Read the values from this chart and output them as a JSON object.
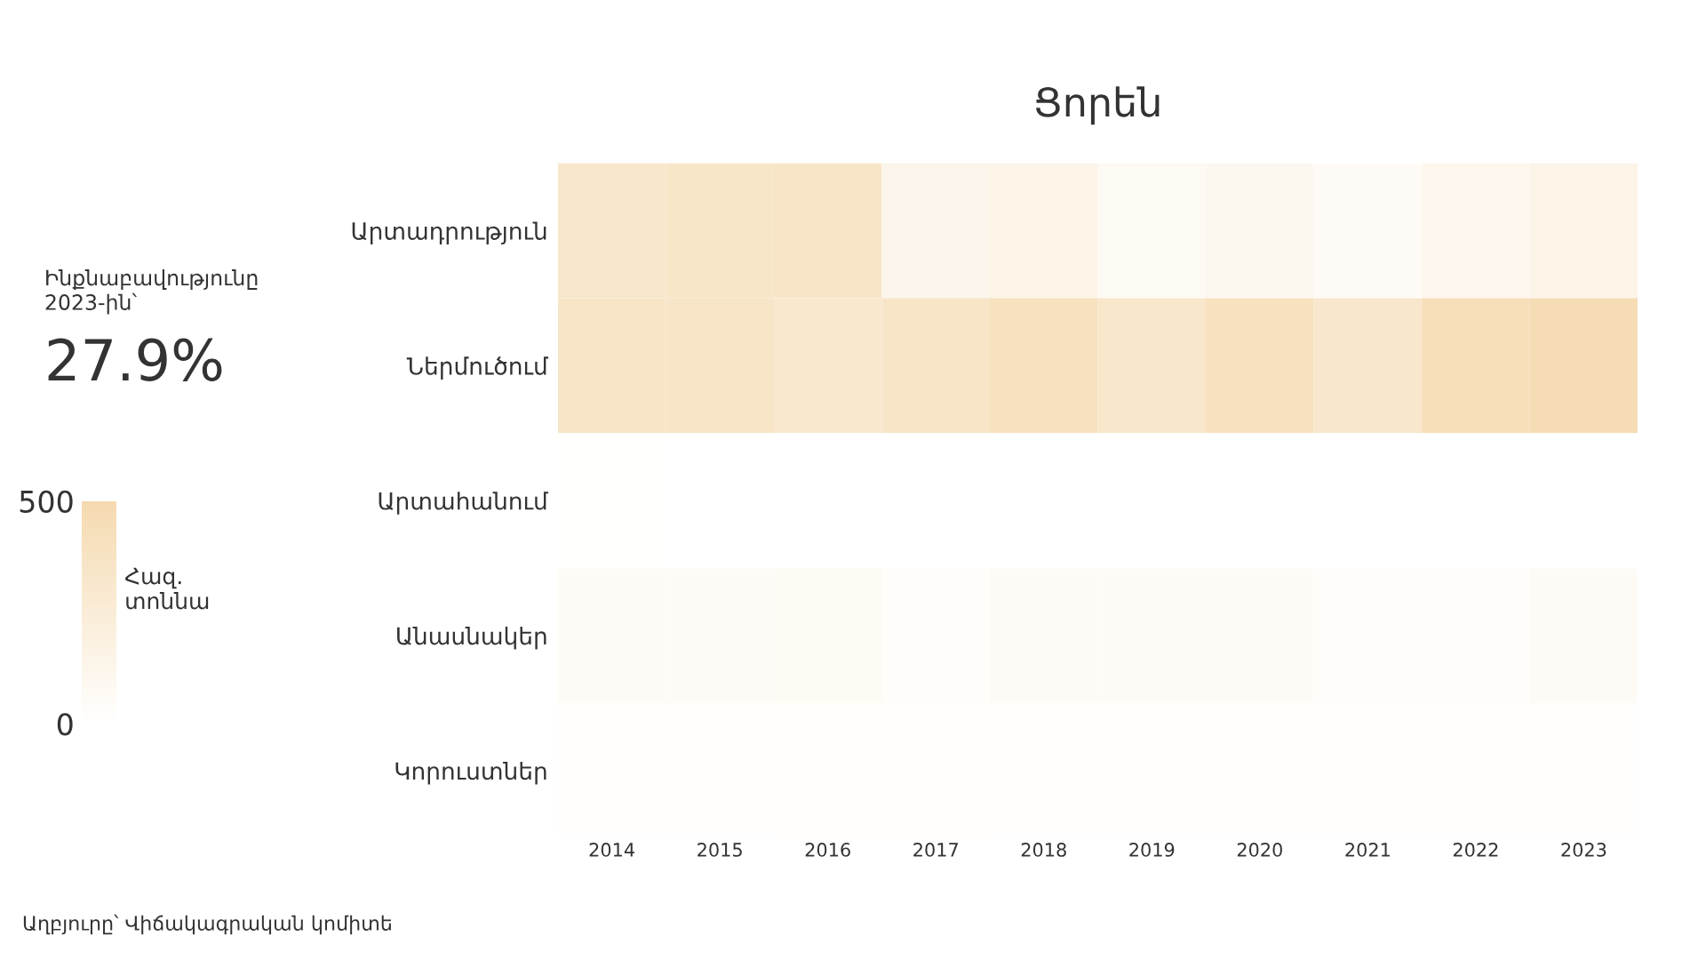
{
  "chart_data": {
    "type": "heatmap",
    "title": "Ցորեն",
    "categories": [
      "2014",
      "2015",
      "2016",
      "2017",
      "2018",
      "2019",
      "2020",
      "2021",
      "2022",
      "2023"
    ],
    "y_categories": [
      "Արտադրություն",
      "Ներմուծում",
      "Արտահանում",
      "Անասնակեր",
      "Կորուստներ"
    ],
    "cells": [
      [
        330,
        340,
        350,
        130,
        150,
        80,
        100,
        60,
        110,
        150
      ],
      [
        350,
        360,
        310,
        350,
        410,
        330,
        410,
        320,
        440,
        470
      ],
      [
        5,
        3,
        3,
        2,
        0,
        0,
        3,
        0,
        3,
        0
      ],
      [
        50,
        50,
        70,
        30,
        55,
        55,
        55,
        30,
        35,
        50
      ],
      [
        15,
        15,
        18,
        18,
        15,
        12,
        12,
        12,
        12,
        12
      ]
    ],
    "color": "#f5dab0",
    "clim": [
      0,
      500
    ],
    "cticks": [
      0,
      500
    ],
    "clabel": "Հազ.\nտոննա",
    "annotations": [
      "Ինքնաբավությունը\n2023-ին՝",
      "27.9%",
      "Աղբյուրը՝ Վիճակագրական կոմիտե"
    ]
  }
}
